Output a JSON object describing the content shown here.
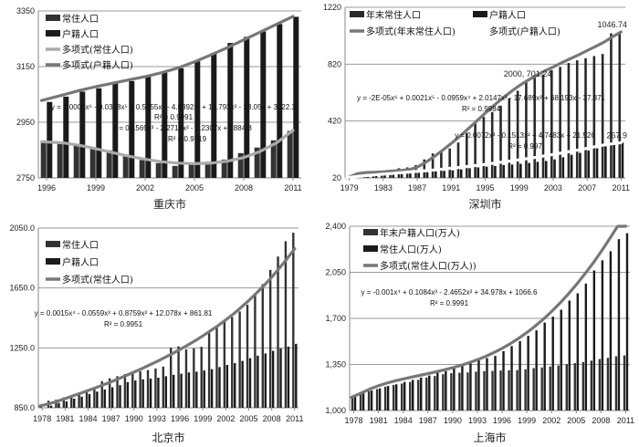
{
  "chart_data": [
    {
      "id": "chongqing",
      "type": "bar",
      "title": "重庆市",
      "xlabel": "",
      "ylabel": "",
      "ylim": [
        2750,
        3350
      ],
      "yticks": [
        "2750",
        "2950",
        "3150",
        "3350"
      ],
      "ytick_values": [
        2750,
        2950,
        3150,
        3350
      ],
      "xtick_labels": [
        "1996",
        "1999",
        "2002",
        "2005",
        "2008",
        "2011"
      ],
      "categories": [
        1996,
        1997,
        1998,
        1999,
        2000,
        2001,
        2002,
        2003,
        2004,
        2005,
        2006,
        2007,
        2008,
        2009,
        2010,
        2011
      ],
      "grid": true,
      "legend_position": "top-left",
      "series": [
        {
          "name": "常住人口",
          "kind": "bar",
          "color": "#333333",
          "values": [
            2875,
            2873,
            2870,
            2860,
            2849,
            2829,
            2814,
            2803,
            2793,
            2798,
            2808,
            2816,
            2839,
            2859,
            2885,
            2919
          ]
        },
        {
          "name": "户籍人口",
          "kind": "bar",
          "color": "#1a1a1a",
          "values": [
            3023,
            3042,
            3060,
            3072,
            3091,
            3098,
            3114,
            3130,
            3144,
            3169,
            3199,
            3235,
            3257,
            3276,
            3303,
            3329
          ]
        },
        {
          "name": "多项式(常住人口)",
          "kind": "trend",
          "color": "#aaaaaa",
          "values": [
            2880,
            2876,
            2867,
            2855,
            2841,
            2828,
            2817,
            2808,
            2803,
            2801,
            2803,
            2810,
            2823,
            2845,
            2876,
            2921
          ]
        },
        {
          "name": "多项式(户籍人口)",
          "kind": "trend",
          "color": "#777777",
          "values": [
            3028,
            3048,
            3064,
            3078,
            3090,
            3102,
            3114,
            3128,
            3145,
            3167,
            3192,
            3218,
            3246,
            3274,
            3302,
            3330
          ]
        }
      ],
      "annotations": [
        {
          "text": "y = 0.0006x⁶ - 0.0308x⁵ + 0.5755x⁴ - 4.8392x³ + 18.793x² - 13.05x + 3022.3",
          "series": "多项式(户籍人口)"
        },
        {
          "text": "R² = 0.9991",
          "series": "多项式(户籍人口)"
        },
        {
          "text": "y = 0.1569x³ - 2.2716x² - 1.2307x + 2884.8",
          "series": "多项式(常住人口)"
        },
        {
          "text": "R² = 0.9719",
          "series": "多项式(常住人口)"
        }
      ]
    },
    {
      "id": "shenzhen",
      "type": "bar",
      "title": "深圳市",
      "xlabel": "",
      "ylabel": "",
      "ylim": [
        20,
        1220
      ],
      "yticks": [
        "20",
        "420",
        "820",
        "1220"
      ],
      "ytick_values": [
        20,
        420,
        820,
        1220
      ],
      "xtick_labels": [
        "1979",
        "1983",
        "1987",
        "1991",
        "1995",
        "1999",
        "2003",
        "2007",
        "2011"
      ],
      "categories": [
        1979,
        1980,
        1981,
        1982,
        1983,
        1984,
        1985,
        1986,
        1987,
        1988,
        1989,
        1990,
        1991,
        1992,
        1993,
        1994,
        1995,
        1996,
        1997,
        1998,
        1999,
        2000,
        2001,
        2002,
        2003,
        2004,
        2005,
        2006,
        2007,
        2008,
        2009,
        2010,
        2011
      ],
      "grid": true,
      "legend_position": "top",
      "series": [
        {
          "name": "年末常住人口",
          "kind": "bar",
          "color": "#2a2a2a",
          "values": [
            31,
            33,
            37,
            40,
            60,
            74,
            88,
            94,
            110,
            150,
            192,
            202,
            227,
            269,
            336,
            412,
            449,
            483,
            528,
            580,
            633,
            701,
            725,
            747,
            778,
            801,
            828,
            847,
            862,
            877,
            892,
            1037,
            1047
          ]
        },
        {
          "name": "户籍人口",
          "kind": "bar",
          "color": "#1a1a1a",
          "values": [
            31,
            32,
            33,
            35,
            40,
            43,
            48,
            51,
            56,
            60,
            66,
            69,
            73,
            80,
            88,
            94,
            99,
            103,
            110,
            114,
            119,
            125,
            133,
            139,
            150,
            165,
            182,
            196,
            212,
            228,
            242,
            251,
            268
          ]
        },
        {
          "name": "多项式(年末常住人口)",
          "kind": "trend",
          "color": "#777777",
          "values": [
            20,
            50,
            58,
            60,
            63,
            68,
            72,
            78,
            95,
            130,
            170,
            215,
            262,
            312,
            365,
            420,
            475,
            528,
            578,
            625,
            668,
            706,
            740,
            772,
            800,
            830,
            858,
            885,
            915,
            945,
            975,
            1012,
            1047
          ]
        },
        {
          "name": "多项式(户籍人口)",
          "kind": "trend",
          "color": "#ffffff",
          "values": [
            22,
            30,
            36,
            41,
            46,
            51,
            56,
            61,
            66,
            71,
            76,
            82,
            88,
            94,
            101,
            108,
            115,
            123,
            131,
            139,
            147,
            156,
            165,
            175,
            185,
            195,
            206,
            217,
            228,
            240,
            252,
            260,
            268
          ]
        }
      ],
      "data_labels": [
        {
          "text": "2000, 701.24",
          "x": 2000,
          "y": 701.24
        },
        {
          "text": "1046.74",
          "x": 2011,
          "y": 1046.74
        },
        {
          "text": "267.9",
          "x": 2011,
          "y": 267.9
        }
      ],
      "annotations": [
        {
          "text": "y = -2E-05x⁶ + 0.0021x⁵ - 0.0959x⁴ + 2.0147x³ - 17.689x² + 68.193x - 37.371",
          "series": "多项式(年末常住人口)"
        },
        {
          "text": "R² = 0.9984",
          "series": "多项式(年末常住人口)"
        },
        {
          "text": "y = 0.0072x³ - 0.1513x² + 4.7483x + 21.526",
          "series": "多项式(户籍人口)"
        },
        {
          "text": "R² = 0.997",
          "series": "多项式(户籍人口)"
        }
      ]
    },
    {
      "id": "beijing",
      "type": "bar",
      "title": "北京市",
      "xlabel": "",
      "ylabel": "",
      "ylim": [
        850,
        2050
      ],
      "yticks": [
        "850.0",
        "1250.0",
        "1650.0",
        "2050.0"
      ],
      "ytick_values": [
        850,
        1250,
        1650,
        2050
      ],
      "xtick_labels": [
        "1978",
        "1981",
        "1984",
        "1987",
        "1990",
        "1993",
        "1996",
        "1999",
        "2002",
        "2005",
        "2008",
        "2011"
      ],
      "categories": [
        1978,
        1979,
        1980,
        1981,
        1982,
        1983,
        1984,
        1985,
        1986,
        1987,
        1988,
        1989,
        1990,
        1991,
        1992,
        1993,
        1994,
        1995,
        1996,
        1997,
        1998,
        1999,
        2000,
        2001,
        2002,
        2003,
        2004,
        2005,
        2006,
        2007,
        2008,
        2009,
        2010,
        2011
      ],
      "grid": true,
      "legend_position": "top-left",
      "series": [
        {
          "name": "常住人口",
          "kind": "bar",
          "color": "#333333",
          "values": [
            872,
            897,
            904,
            919,
            935,
            950,
            965,
            981,
            1028,
            1047,
            1061,
            1075,
            1086,
            1094,
            1102,
            1112,
            1125,
            1251,
            1260,
            1240,
            1246,
            1257,
            1364,
            1385,
            1423,
            1456,
            1493,
            1538,
            1601,
            1676,
            1771,
            1860,
            1962,
            2019
          ]
        },
        {
          "name": "户籍人口",
          "kind": "bar",
          "color": "#1a1a1a",
          "values": [
            850,
            864,
            882,
            893,
            911,
            924,
            942,
            958,
            972,
            987,
            1001,
            1021,
            1032,
            1040,
            1045,
            1051,
            1061,
            1070,
            1078,
            1086,
            1091,
            1099,
            1108,
            1122,
            1136,
            1148,
            1163,
            1181,
            1198,
            1213,
            1230,
            1246,
            1258,
            1277
          ]
        },
        {
          "name": "多项式(常住人口)",
          "kind": "trend",
          "color": "#777777",
          "values": [
            862,
            878,
            894,
            911,
            929,
            947,
            965,
            984,
            1003,
            1023,
            1044,
            1066,
            1088,
            1111,
            1135,
            1159,
            1185,
            1211,
            1239,
            1268,
            1298,
            1330,
            1364,
            1399,
            1437,
            1477,
            1520,
            1566,
            1615,
            1667,
            1722,
            1782,
            1845,
            1912
          ]
        }
      ],
      "annotations": [
        {
          "text": "y = 0.0015x⁴ - 0.0559x³ + 0.8759x² + 12.078x + 861.81",
          "series": "多项式(常住人口)"
        },
        {
          "text": "R² = 0.9951",
          "series": "多项式(常住人口)"
        }
      ]
    },
    {
      "id": "shanghai",
      "type": "bar",
      "title": "上海市",
      "xlabel": "",
      "ylabel": "",
      "ylim": [
        1000,
        2400
      ],
      "yticks": [
        "1,000",
        "1,350",
        "1,700",
        "2,050",
        "2,400"
      ],
      "ytick_values": [
        1000,
        1350,
        1700,
        2050,
        2400
      ],
      "xtick_labels": [
        "1978",
        "1981",
        "1984",
        "1987",
        "1990",
        "1993",
        "1996",
        "1999",
        "2002",
        "2005",
        "2008",
        "2011"
      ],
      "categories": [
        1978,
        1979,
        1980,
        1981,
        1982,
        1983,
        1984,
        1985,
        1986,
        1987,
        1988,
        1989,
        1990,
        1991,
        1992,
        1993,
        1994,
        1995,
        1996,
        1997,
        1998,
        1999,
        2000,
        2001,
        2002,
        2003,
        2004,
        2005,
        2006,
        2007,
        2008,
        2009,
        2010,
        2011
      ],
      "grid": true,
      "legend_position": "top-left",
      "series": [
        {
          "name": "年末户籍人口(万人)",
          "kind": "bar",
          "color": "#333333",
          "values": [
            1098,
            1132,
            1147,
            1163,
            1181,
            1194,
            1205,
            1217,
            1233,
            1250,
            1262,
            1276,
            1283,
            1287,
            1289,
            1295,
            1299,
            1301,
            1304,
            1305,
            1307,
            1313,
            1322,
            1327,
            1334,
            1342,
            1352,
            1360,
            1368,
            1379,
            1391,
            1400,
            1412,
            1419
          ]
        },
        {
          "name": "常住人口(万人)",
          "kind": "bar",
          "color": "#1a1a1a",
          "values": [
            1104,
            1137,
            1152,
            1168,
            1186,
            1199,
            1217,
            1233,
            1250,
            1266,
            1288,
            1299,
            1334,
            1350,
            1365,
            1381,
            1398,
            1415,
            1451,
            1489,
            1527,
            1567,
            1609,
            1668,
            1713,
            1766,
            1835,
            1890,
            1964,
            2064,
            2141,
            2210,
            2302,
            2347
          ]
        },
        {
          "name": "多项式(常住人口(万人))",
          "kind": "trend",
          "color": "#777777",
          "values": [
            1100,
            1135,
            1164,
            1188,
            1208,
            1225,
            1240,
            1254,
            1267,
            1280,
            1294,
            1309,
            1325,
            1343,
            1363,
            1386,
            1411,
            1440,
            1472,
            1508,
            1548,
            1592,
            1641,
            1694,
            1752,
            1815,
            1883,
            1956,
            2034,
            2117,
            2206,
            2300,
            2399,
            2400
          ]
        }
      ],
      "annotations": [
        {
          "text": "y = -0.001x⁴ + 0.1084x³ - 2.4652x² + 34.978x + 1066.6",
          "series": "多项式(常住人口(万人))"
        },
        {
          "text": "R² = 0.9991",
          "series": "多项式(常住人口(万人))"
        }
      ]
    }
  ]
}
